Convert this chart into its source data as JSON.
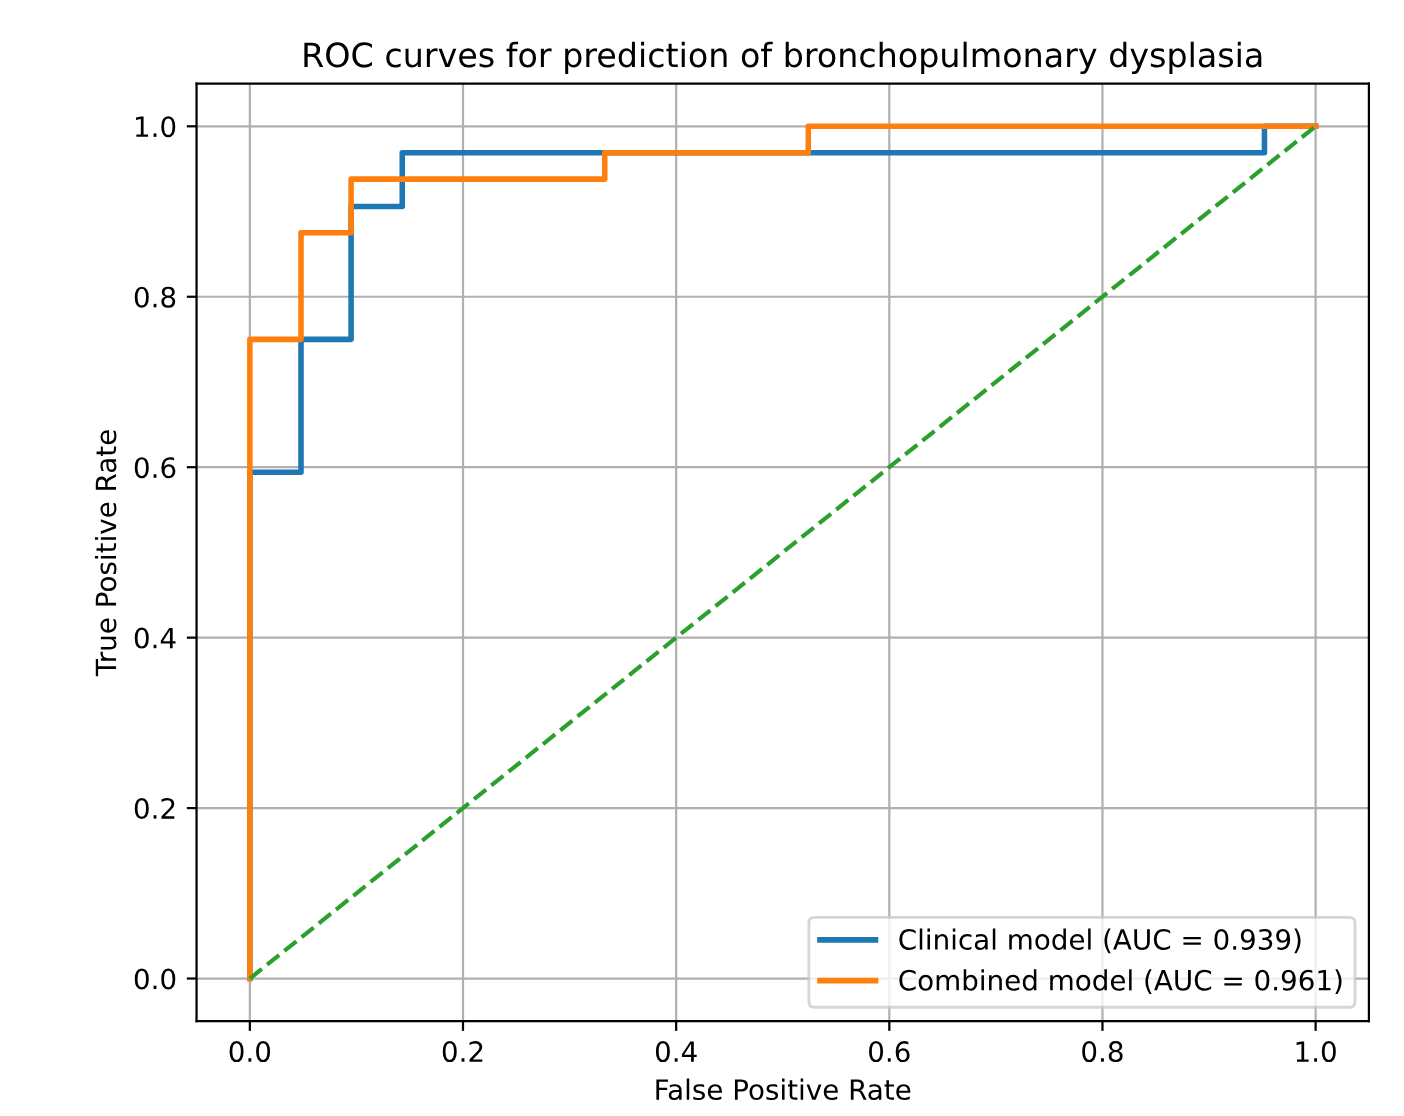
{
  "chart_data": {
    "type": "line",
    "title": "ROC curves for prediction of bronchopulmonary dysplasia",
    "xlabel": "False Positive Rate",
    "ylabel": "True Positive Rate",
    "series": [
      {
        "name": "Clinical model (AUC = 0.939)",
        "color": "#1f77b4",
        "x": [
          0,
          0,
          0.048,
          0.048,
          0.095,
          0.095,
          0.143,
          0.143,
          0.952,
          0.952,
          1
        ],
        "values": [
          0,
          0.594,
          0.594,
          0.75,
          0.75,
          0.906,
          0.906,
          0.969,
          0.969,
          1,
          1
        ]
      },
      {
        "name": "Combined model (AUC = 0.961)",
        "color": "#ff7f0e",
        "x": [
          0,
          0,
          0.048,
          0.048,
          0.095,
          0.095,
          0.333,
          0.333,
          0.524,
          0.524,
          1
        ],
        "values": [
          0,
          0.75,
          0.75,
          0.875,
          0.875,
          0.938,
          0.938,
          0.969,
          0.969,
          1,
          1
        ]
      },
      {
        "color": "#2ca02c",
        "line_style": "dashed",
        "x": [
          0,
          1
        ],
        "values": [
          0,
          1
        ]
      }
    ],
    "xlim": [
      -0.05,
      1.05
    ],
    "ylim": [
      -0.05,
      1.05
    ],
    "xticks": [
      {
        "value": 0,
        "label": "0.0"
      },
      {
        "value": 0.2,
        "label": "0.2"
      },
      {
        "value": 0.4,
        "label": "0.4"
      },
      {
        "value": 0.6,
        "label": "0.6"
      },
      {
        "value": 0.8,
        "label": "0.8"
      },
      {
        "value": 1,
        "label": "1.0"
      }
    ],
    "yticks": [
      {
        "value": 0,
        "label": "0.0"
      },
      {
        "value": 0.2,
        "label": "0.2"
      },
      {
        "value": 0.4,
        "label": "0.4"
      },
      {
        "value": 0.6,
        "label": "0.6"
      },
      {
        "value": 0.8,
        "label": "0.8"
      },
      {
        "value": 1,
        "label": "1.0"
      }
    ],
    "grid": true,
    "legend": "lower right"
  }
}
